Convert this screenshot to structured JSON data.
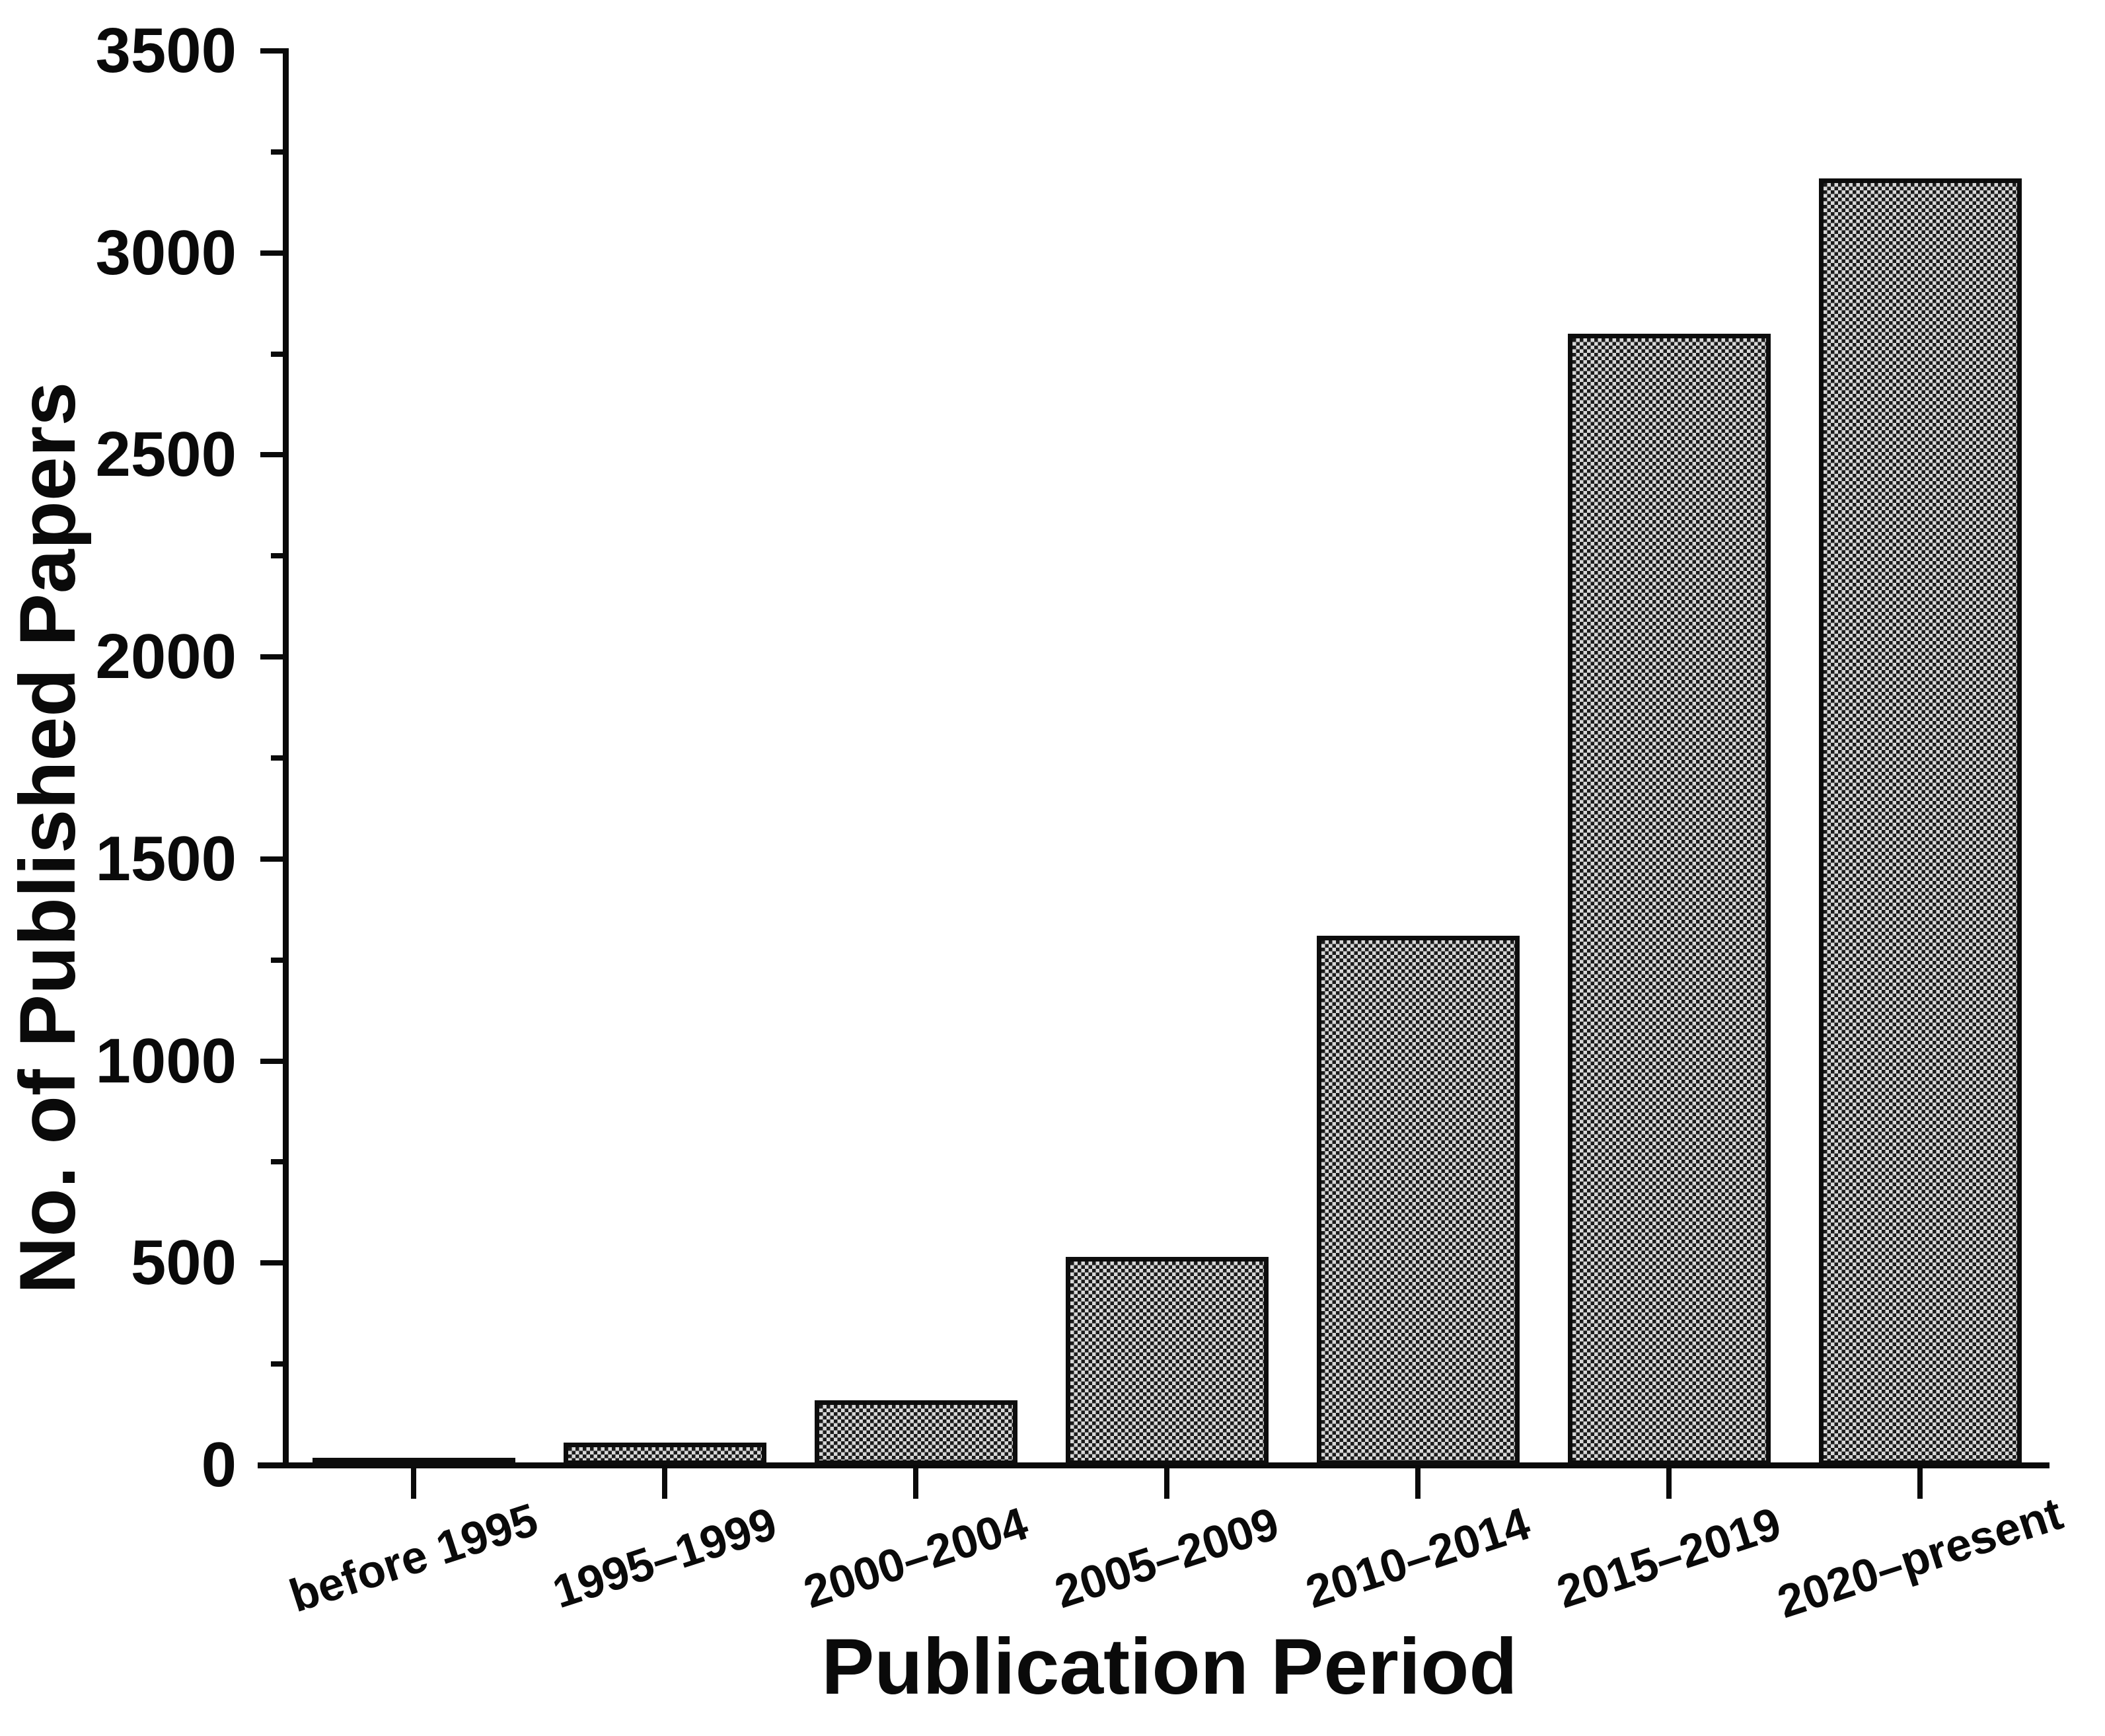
{
  "figure": {
    "background_color": "#ffffff",
    "text_color": "#0a0a0a",
    "bar_fill": "dark gray dense crosshatch (checkerboard hatch)",
    "bar_edge_color": "#0d0d0d"
  },
  "y_axis": {
    "title": "No. of Published Papers",
    "tick_labels": [
      "0",
      "500",
      "1000",
      "1500",
      "2000",
      "2500",
      "3000",
      "3500"
    ]
  },
  "x_axis": {
    "title": "Publication Period"
  },
  "chart_data": {
    "type": "bar",
    "title": "",
    "categories": [
      "before 1995",
      "1995–1999",
      "2000–2004",
      "2005–2009",
      "2010–2014",
      "2015–2019",
      "2020–present"
    ],
    "values": [
      15,
      55,
      160,
      515,
      1310,
      2800,
      3185
    ],
    "xlabel": "Publication Period",
    "ylabel": "No. of Published Papers",
    "ylim": [
      0,
      3500
    ],
    "y_major_step": 500,
    "y_minor_step": 250,
    "grid": false,
    "legend": false,
    "x_tick_label_rotation_deg": 18
  }
}
